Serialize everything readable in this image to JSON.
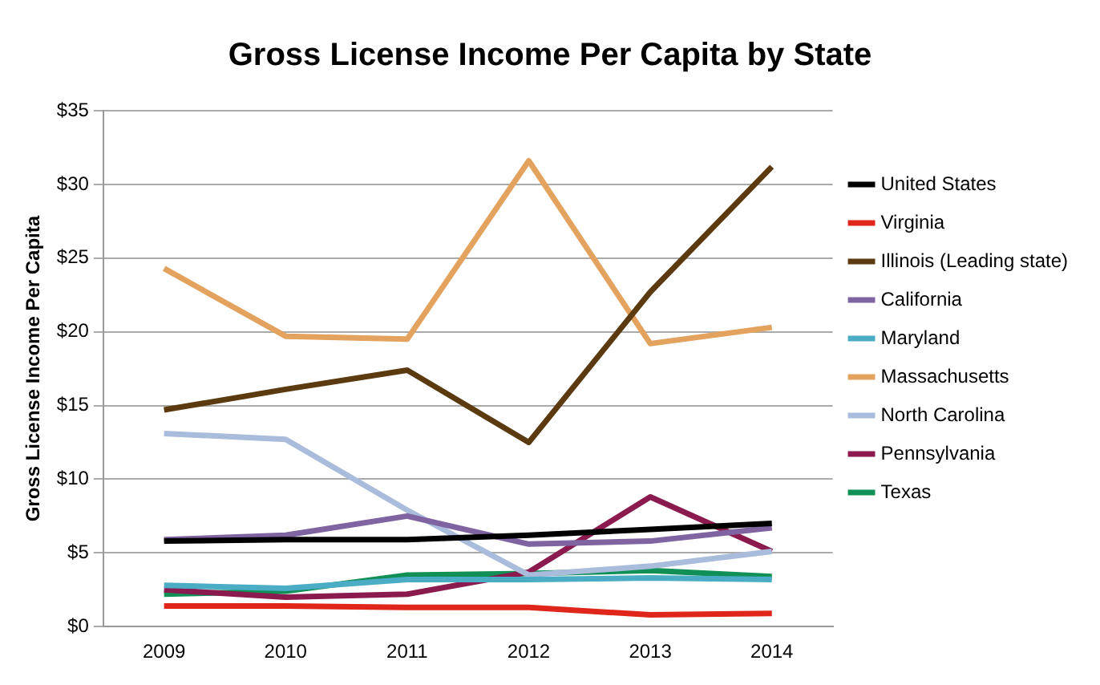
{
  "chart_data": {
    "type": "line",
    "title": "Gross License Income Per Capita by State",
    "ylabel": "Gross License Income Per Capita",
    "categories": [
      "2009",
      "2010",
      "2011",
      "2012",
      "2013",
      "2014"
    ],
    "ylim": [
      0,
      35
    ],
    "yticks": [
      {
        "value": 0,
        "label": "$0"
      },
      {
        "value": 5,
        "label": "$5"
      },
      {
        "value": 10,
        "label": "$10"
      },
      {
        "value": 15,
        "label": "$15"
      },
      {
        "value": 20,
        "label": "$20"
      },
      {
        "value": 25,
        "label": "$25"
      },
      {
        "value": 30,
        "label": "$30"
      },
      {
        "value": 35,
        "label": "$35"
      }
    ],
    "grid": "y",
    "legend": "right",
    "marker": "none",
    "line_style": "solid",
    "series": [
      {
        "name": "United States",
        "color": "#000000",
        "values": [
          5.8,
          5.9,
          5.9,
          6.2,
          6.6,
          7.0
        ]
      },
      {
        "name": "Virginia",
        "color": "#e0261b",
        "values": [
          1.4,
          1.4,
          1.3,
          1.3,
          0.8,
          0.9
        ]
      },
      {
        "name": "Illinois (Leading state)",
        "color": "#5c3a10",
        "values": [
          14.7,
          16.1,
          17.4,
          12.5,
          22.7,
          31.2
        ]
      },
      {
        "name": "California",
        "color": "#8064a2",
        "values": [
          5.9,
          6.2,
          7.5,
          5.6,
          5.8,
          6.7
        ]
      },
      {
        "name": "Maryland",
        "color": "#4bacc6",
        "values": [
          2.8,
          2.6,
          3.2,
          3.2,
          3.3,
          3.2
        ]
      },
      {
        "name": "Massachusetts",
        "color": "#e3a25e",
        "values": [
          24.3,
          19.7,
          19.5,
          31.6,
          19.2,
          20.3
        ]
      },
      {
        "name": "North Carolina",
        "color": "#a9bcdc",
        "values": [
          13.1,
          12.7,
          7.9,
          3.5,
          4.1,
          5.1
        ]
      },
      {
        "name": "Pennsylvania",
        "color": "#8b1a4e",
        "values": [
          2.5,
          2.0,
          2.2,
          3.7,
          8.8,
          5.1
        ]
      },
      {
        "name": "Texas",
        "color": "#109056",
        "values": [
          2.2,
          2.4,
          3.5,
          3.6,
          3.8,
          3.4
        ]
      }
    ]
  }
}
